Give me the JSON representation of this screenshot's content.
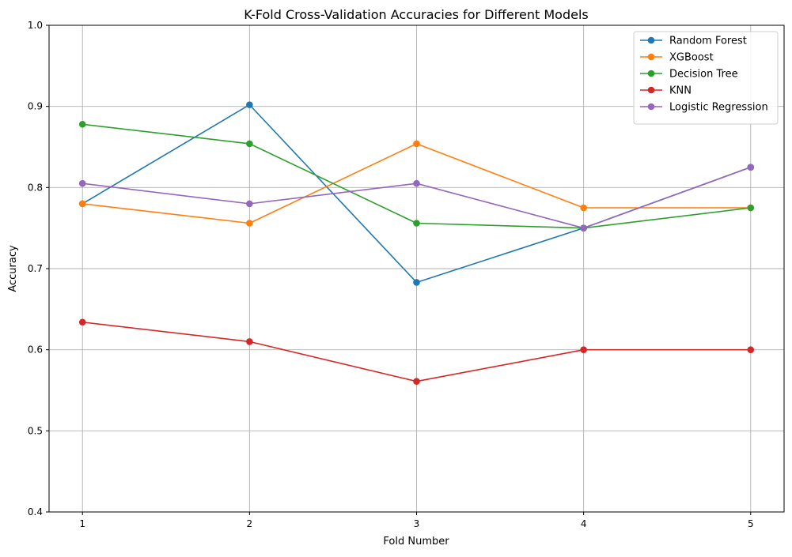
{
  "chart_data": {
    "type": "line",
    "title": "K-Fold Cross-Validation Accuracies for Different Models",
    "xlabel": "Fold Number",
    "ylabel": "Accuracy",
    "x": [
      1,
      2,
      3,
      4,
      5
    ],
    "xlim": [
      0.8,
      5.2
    ],
    "ylim": [
      0.4,
      1.0
    ],
    "yticks": [
      0.4,
      0.5,
      0.6,
      0.7,
      0.8,
      0.9,
      1.0
    ],
    "ytick_labels": [
      "0.4",
      "0.5",
      "0.6",
      "0.7",
      "0.8",
      "0.9",
      "1.0"
    ],
    "xticks": [
      1,
      2,
      3,
      4,
      5
    ],
    "xtick_labels": [
      "1",
      "2",
      "3",
      "4",
      "5"
    ],
    "grid": true,
    "legend_position": "top-right",
    "series": [
      {
        "name": "Random Forest",
        "color": "#1f77b4",
        "values": [
          0.78,
          0.902,
          0.683,
          0.75,
          0.825
        ]
      },
      {
        "name": "XGBoost",
        "color": "#ff7f0e",
        "values": [
          0.78,
          0.756,
          0.854,
          0.775,
          0.775
        ]
      },
      {
        "name": "Decision Tree",
        "color": "#2ca02c",
        "values": [
          0.878,
          0.854,
          0.756,
          0.75,
          0.775
        ]
      },
      {
        "name": "KNN",
        "color": "#d62728",
        "values": [
          0.634,
          0.61,
          0.561,
          0.6,
          0.6
        ]
      },
      {
        "name": "Logistic Regression",
        "color": "#9467bd",
        "values": [
          0.805,
          0.78,
          0.805,
          0.75,
          0.825
        ]
      }
    ]
  }
}
